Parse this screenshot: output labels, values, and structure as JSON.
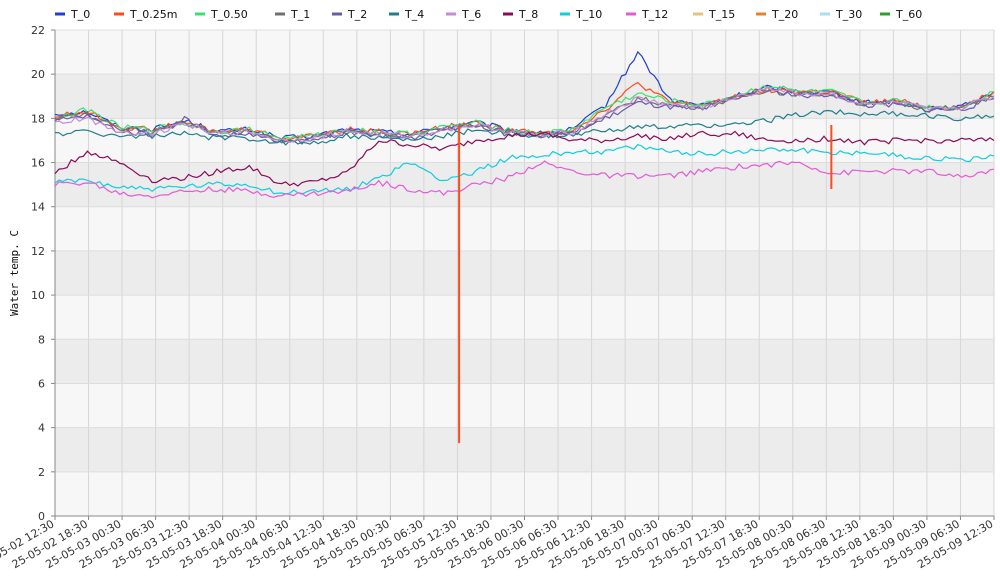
{
  "chart_data": {
    "type": "line",
    "ylabel": "Water temp. C",
    "ylim": [
      0,
      22
    ],
    "yticks": [
      0,
      2,
      4,
      6,
      8,
      10,
      12,
      14,
      16,
      18,
      20,
      22
    ],
    "grid": true,
    "legend_position": "top",
    "x_tick_labels": [
      "25-05-02 12:30",
      "25-05-02 18:30",
      "25-05-03 00:30",
      "25-05-03 06:30",
      "25-05-03 12:30",
      "25-05-03 18:30",
      "25-05-04 00:30",
      "25-05-04 06:30",
      "25-05-04 12:30",
      "25-05-04 18:30",
      "25-05-05 00:30",
      "25-05-05 06:30",
      "25-05-05 12:30",
      "25-05-05 18:30",
      "25-05-06 00:30",
      "25-05-06 06:30",
      "25-05-06 12:30",
      "25-05-06 18:30",
      "25-05-07 00:30",
      "25-05-07 06:30",
      "25-05-07 12:30",
      "25-05-07 18:30",
      "25-05-08 00:30",
      "25-05-08 06:30",
      "25-05-08 12:30",
      "25-05-08 18:30",
      "25-05-09 00:30",
      "25-05-09 06:30",
      "25-05-09 12:30"
    ],
    "series": [
      {
        "name": "T_0",
        "color": "#1e3fd6",
        "values": [
          18.2,
          18.3,
          17.6,
          17.5,
          17.9,
          17.4,
          17.5,
          17.1,
          17.2,
          17.5,
          17.4,
          17.3,
          17.6,
          17.8,
          17.5,
          17.3,
          17.5,
          18.6,
          21.0,
          18.8,
          18.6,
          19.0,
          19.4,
          19.2,
          19.2,
          18.7,
          18.8,
          18.5,
          18.5,
          19.2
        ]
      },
      {
        "name": "T_0.25m",
        "color": "#ff4b1a",
        "values": [
          18.1,
          18.3,
          17.6,
          17.5,
          17.8,
          17.4,
          17.5,
          17.1,
          17.2,
          17.5,
          17.4,
          17.3,
          17.6,
          17.8,
          17.5,
          17.3,
          17.5,
          18.4,
          19.6,
          18.7,
          18.6,
          19.0,
          19.3,
          19.2,
          19.2,
          18.7,
          18.8,
          18.5,
          18.5,
          19.2
        ]
      },
      {
        "name": "T_0.50",
        "color": "#39e36a",
        "values": [
          18.0,
          18.4,
          17.6,
          17.5,
          17.8,
          17.4,
          17.5,
          17.1,
          17.2,
          17.5,
          17.4,
          17.3,
          17.6,
          17.8,
          17.5,
          17.3,
          17.5,
          18.5,
          19.1,
          18.8,
          18.6,
          19.0,
          19.5,
          19.2,
          19.2,
          18.7,
          18.8,
          18.5,
          18.5,
          19.2
        ]
      },
      {
        "name": "T_1",
        "color": "#707070",
        "values": [
          18.0,
          18.2,
          17.5,
          17.4,
          17.8,
          17.3,
          17.4,
          17.0,
          17.1,
          17.4,
          17.3,
          17.2,
          17.5,
          17.7,
          17.4,
          17.2,
          17.4,
          18.1,
          18.9,
          18.6,
          18.5,
          18.9,
          19.3,
          19.1,
          19.1,
          18.6,
          18.7,
          18.4,
          18.5,
          19.0
        ]
      },
      {
        "name": "T_2",
        "color": "#6a5aa8",
        "values": [
          17.9,
          18.1,
          17.4,
          17.3,
          18.0,
          17.2,
          17.3,
          16.9,
          17.0,
          17.4,
          17.2,
          17.1,
          17.5,
          17.7,
          17.4,
          17.2,
          17.3,
          18.0,
          18.7,
          18.5,
          18.4,
          18.9,
          19.3,
          19.0,
          19.1,
          18.6,
          18.6,
          18.4,
          18.4,
          18.9
        ]
      },
      {
        "name": "T_4",
        "color": "#1f7f8c",
        "values": [
          17.3,
          17.4,
          17.2,
          17.2,
          17.3,
          17.1,
          17.1,
          16.9,
          16.9,
          17.2,
          17.1,
          17.0,
          17.2,
          17.5,
          17.3,
          17.2,
          17.2,
          17.5,
          17.6,
          17.6,
          17.7,
          17.7,
          17.9,
          18.2,
          18.3,
          18.2,
          18.2,
          18.1,
          18.0,
          18.1
        ]
      },
      {
        "name": "T_6",
        "color": "#c68ad8",
        "values": [
          17.8,
          18.0,
          17.4,
          17.3,
          17.8,
          17.3,
          17.4,
          17.0,
          17.1,
          17.4,
          17.3,
          17.2,
          17.5,
          17.7,
          17.4,
          17.2,
          17.4,
          18.2,
          18.9,
          18.6,
          18.5,
          18.9,
          19.4,
          19.1,
          19.1,
          18.6,
          18.7,
          18.4,
          18.5,
          19.0
        ]
      },
      {
        "name": "T_8",
        "color": "#8b0a5a",
        "values": [
          15.5,
          16.5,
          16.0,
          15.2,
          15.3,
          15.6,
          15.8,
          15.0,
          15.1,
          15.5,
          17.0,
          16.8,
          16.6,
          17.0,
          17.2,
          17.3,
          17.0,
          17.0,
          17.2,
          17.1,
          17.3,
          17.3,
          17.0,
          17.0,
          17.1,
          16.9,
          17.0,
          17.0,
          17.0,
          17.0
        ]
      },
      {
        "name": "T_10",
        "color": "#11cde0",
        "values": [
          15.1,
          15.2,
          14.9,
          14.8,
          14.9,
          15.0,
          15.0,
          14.6,
          14.7,
          14.8,
          15.3,
          16.0,
          15.2,
          15.6,
          16.2,
          16.3,
          16.5,
          16.5,
          16.7,
          16.5,
          16.4,
          16.5,
          16.6,
          16.6,
          16.4,
          16.5,
          16.3,
          16.2,
          16.1,
          16.3
        ]
      },
      {
        "name": "T_12",
        "color": "#e65ad8",
        "values": [
          15.0,
          15.1,
          14.6,
          14.5,
          14.7,
          14.8,
          14.7,
          14.5,
          14.6,
          14.7,
          15.1,
          14.8,
          14.6,
          15.0,
          15.3,
          16.0,
          15.6,
          15.4,
          15.4,
          15.4,
          15.6,
          15.8,
          15.9,
          16.0,
          15.5,
          15.6,
          15.6,
          15.6,
          15.3,
          15.7
        ]
      },
      {
        "name": "T_15",
        "color": "#e8c27a",
        "values": []
      },
      {
        "name": "T_20",
        "color": "#e8822a",
        "values": []
      },
      {
        "name": "T_30",
        "color": "#a6e2f2",
        "values": []
      },
      {
        "name": "T_60",
        "color": "#2aa12a",
        "values": []
      }
    ],
    "annotations": [
      {
        "series": "T_0.25m",
        "type": "dropout",
        "at_tick_index": 12.05,
        "min_value": 3.3
      },
      {
        "series": "T_0.25m",
        "type": "dropout",
        "at_tick_index": 23.15,
        "min_value": 14.8
      }
    ]
  }
}
